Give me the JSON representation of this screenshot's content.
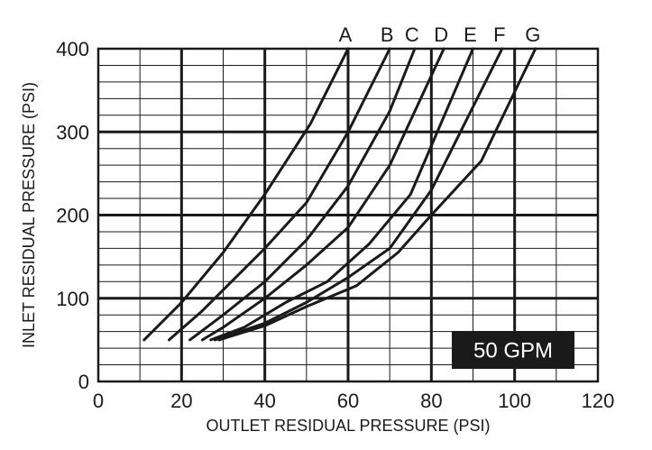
{
  "chart_data": {
    "type": "line",
    "title": "",
    "xlabel": "OUTLET RESIDUAL PRESSURE (PSI)",
    "ylabel": "INLET RESIDUAL PRESSURE (PSI)",
    "xlim": [
      0,
      120
    ],
    "ylim": [
      0,
      400
    ],
    "x_ticks": [
      0,
      20,
      40,
      60,
      80,
      100,
      120
    ],
    "y_ticks": [
      0,
      100,
      200,
      300,
      400
    ],
    "x_minor_step": 10,
    "y_minor_step": 20,
    "grid": true,
    "annotation": "50 GPM",
    "series": [
      {
        "name": "A",
        "x": [
          11,
          20,
          30,
          40,
          51,
          60
        ],
        "y": [
          50,
          95,
          155,
          225,
          310,
          400
        ]
      },
      {
        "name": "B",
        "x": [
          17,
          25,
          40,
          50,
          60,
          70
        ],
        "y": [
          50,
          85,
          160,
          215,
          300,
          400
        ]
      },
      {
        "name": "C",
        "x": [
          22,
          30,
          40,
          50,
          60,
          70,
          76
        ],
        "y": [
          50,
          80,
          120,
          170,
          235,
          325,
          400
        ]
      },
      {
        "name": "D",
        "x": [
          25,
          30,
          40,
          50,
          60,
          70,
          83
        ],
        "y": [
          50,
          65,
          100,
          140,
          185,
          260,
          400
        ]
      },
      {
        "name": "E",
        "x": [
          27,
          35,
          45,
          55,
          65,
          75,
          90
        ],
        "y": [
          50,
          65,
          95,
          120,
          165,
          225,
          400
        ]
      },
      {
        "name": "F",
        "x": [
          28,
          40,
          50,
          60,
          70,
          80,
          97
        ],
        "y": [
          50,
          70,
          95,
          125,
          160,
          230,
          400
        ]
      },
      {
        "name": "G",
        "x": [
          29,
          40,
          50,
          62,
          72,
          80,
          92,
          105
        ],
        "y": [
          50,
          67,
          90,
          115,
          155,
          200,
          265,
          400
        ]
      }
    ]
  }
}
